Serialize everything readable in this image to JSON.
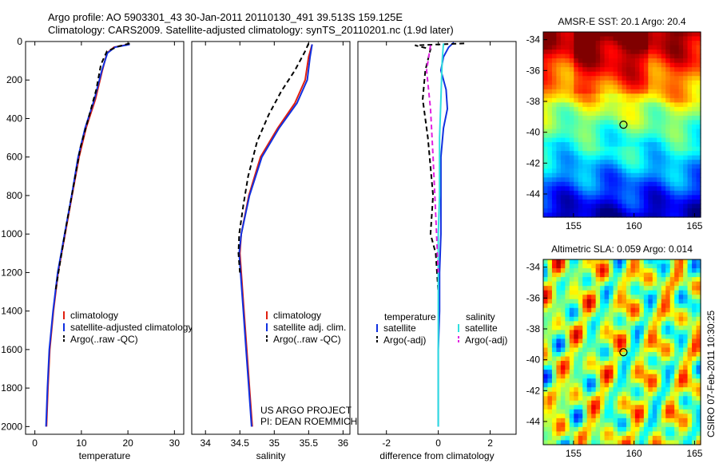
{
  "header": {
    "title_line1": "Argo profile: AO 5903301_43 30-Jan-2011 20110130_491 39.513S 159.125E",
    "title_line2": "Climatology: CARS2009. Satellite-adjusted climatology: synTS_20110201.nc (1.9d later)"
  },
  "footer": {
    "project_line1": "US ARGO PROJECT",
    "project_line2": "PI: DEAN ROEMMICH",
    "csiro_stamp": "CSIRO 07-Feb-2011 10:30:25"
  },
  "colors": {
    "climatology": "#e02010",
    "satellite": "#1030e0",
    "argo": "#000000",
    "sal_satellite": "#30e0e0",
    "sal_argo": "#e020e0"
  },
  "chart_data": [
    {
      "type": "line",
      "id": "temperature",
      "title": "",
      "xlabel": "temperature",
      "ylabel": "",
      "xlim": [
        -2,
        32
      ],
      "ylim": [
        2040,
        0
      ],
      "xticks": [
        0,
        10,
        20,
        30
      ],
      "yticks": [
        0,
        200,
        400,
        600,
        800,
        1000,
        1200,
        1400,
        1600,
        1800,
        2000
      ],
      "legend": [
        {
          "label": "climatology",
          "key": "climatology"
        },
        {
          "label": "satellite-adjusted climatology",
          "key": "satellite"
        },
        {
          "label": "Argo(..raw -QC)",
          "key": "argo"
        }
      ],
      "series": [
        {
          "name": "climatology",
          "color_key": "climatology",
          "dash": "",
          "points": [
            [
              20.2,
              15
            ],
            [
              17,
              30
            ],
            [
              15.5,
              60
            ],
            [
              14.5,
              150
            ],
            [
              13,
              300
            ],
            [
              11,
              450
            ],
            [
              9.5,
              600
            ],
            [
              8,
              800
            ],
            [
              6.5,
              1000
            ],
            [
              5,
              1200
            ],
            [
              4,
              1400
            ],
            [
              3.2,
              1600
            ],
            [
              2.8,
              1800
            ],
            [
              2.5,
              2000
            ]
          ]
        },
        {
          "name": "satellite",
          "color_key": "satellite",
          "dash": "",
          "points": [
            [
              20.4,
              15
            ],
            [
              17.2,
              30
            ],
            [
              15.6,
              60
            ],
            [
              14.4,
              150
            ],
            [
              12.8,
              300
            ],
            [
              10.8,
              450
            ],
            [
              9.3,
              600
            ],
            [
              7.9,
              800
            ],
            [
              6.4,
              1000
            ],
            [
              4.9,
              1200
            ],
            [
              3.9,
              1400
            ],
            [
              3.1,
              1600
            ],
            [
              2.7,
              1800
            ],
            [
              2.4,
              2000
            ]
          ]
        },
        {
          "name": "argo",
          "color_key": "argo",
          "dash": "6,4",
          "points": [
            [
              20.4,
              10
            ],
            [
              18,
              25
            ],
            [
              15.5,
              50
            ],
            [
              14.2,
              120
            ],
            [
              13.2,
              250
            ],
            [
              11.5,
              400
            ],
            [
              9.8,
              550
            ],
            [
              8.3,
              750
            ],
            [
              6.8,
              950
            ],
            [
              5.4,
              1150
            ],
            [
              4.4,
              1300
            ]
          ]
        }
      ]
    },
    {
      "type": "line",
      "id": "salinity",
      "title": "",
      "xlabel": "salinity",
      "ylabel": "",
      "xlim": [
        33.8,
        36.1
      ],
      "ylim": [
        2040,
        0
      ],
      "xticks": [
        34,
        34.5,
        35,
        35.5,
        36
      ],
      "yticks": [],
      "legend": [
        {
          "label": "climatology",
          "key": "climatology"
        },
        {
          "label": "satellite adj. clim.",
          "key": "satellite"
        },
        {
          "label": "Argo(..raw -QC)",
          "key": "argo"
        }
      ],
      "series": [
        {
          "name": "climatology",
          "color_key": "climatology",
          "dash": "",
          "points": [
            [
              35.55,
              15
            ],
            [
              35.5,
              80
            ],
            [
              35.45,
              200
            ],
            [
              35.3,
              320
            ],
            [
              35.05,
              450
            ],
            [
              34.8,
              600
            ],
            [
              34.63,
              800
            ],
            [
              34.52,
              1000
            ],
            [
              34.5,
              1100
            ],
            [
              34.52,
              1200
            ],
            [
              34.56,
              1400
            ],
            [
              34.6,
              1600
            ],
            [
              34.64,
              1800
            ],
            [
              34.68,
              2000
            ]
          ]
        },
        {
          "name": "satellite",
          "color_key": "satellite",
          "dash": "",
          "points": [
            [
              35.55,
              15
            ],
            [
              35.52,
              80
            ],
            [
              35.48,
              200
            ],
            [
              35.33,
              320
            ],
            [
              35.07,
              450
            ],
            [
              34.82,
              600
            ],
            [
              34.64,
              800
            ],
            [
              34.52,
              1000
            ],
            [
              34.49,
              1100
            ],
            [
              34.51,
              1200
            ],
            [
              34.55,
              1400
            ],
            [
              34.59,
              1600
            ],
            [
              34.63,
              1800
            ],
            [
              34.67,
              2000
            ]
          ]
        },
        {
          "name": "argo",
          "color_key": "argo",
          "dash": "6,4",
          "points": [
            [
              35.5,
              10
            ],
            [
              35.45,
              50
            ],
            [
              35.3,
              150
            ],
            [
              35.1,
              260
            ],
            [
              34.92,
              380
            ],
            [
              34.75,
              520
            ],
            [
              34.62,
              700
            ],
            [
              34.55,
              850
            ],
            [
              34.49,
              1000
            ],
            [
              34.48,
              1100
            ],
            [
              34.5,
              1200
            ]
          ]
        }
      ]
    },
    {
      "type": "line",
      "id": "difference",
      "title": "",
      "xlabel": "difference from climatology",
      "ylabel": "",
      "xlim": [
        -3.1,
        3.0
      ],
      "ylim": [
        2040,
        0
      ],
      "xticks": [
        -2,
        0,
        2
      ],
      "yticks": [],
      "legend_header_left": "temperature",
      "legend_header_right": "salinity",
      "legend_left": [
        {
          "label": "satellite",
          "key": "satellite"
        },
        {
          "label": "Argo(-adj)",
          "key": "argo"
        }
      ],
      "legend_right": [
        {
          "label": "satellite",
          "key": "sal_satellite"
        },
        {
          "label": "Argo(-adj)",
          "key": "sal_argo"
        }
      ],
      "series": [
        {
          "name": "temperature satellite",
          "color_key": "satellite",
          "dash": "",
          "points": [
            [
              0.6,
              5
            ],
            [
              0.4,
              30
            ],
            [
              0.2,
              80
            ],
            [
              0.1,
              150
            ],
            [
              0.3,
              250
            ],
            [
              0.35,
              350
            ],
            [
              0.2,
              450
            ],
            [
              0.1,
              600
            ],
            [
              0.1,
              800
            ],
            [
              0.1,
              1000
            ],
            [
              0.05,
              1200
            ],
            [
              0.05,
              1400
            ],
            [
              0,
              1600
            ],
            [
              0,
              1800
            ],
            [
              0,
              2000
            ]
          ]
        },
        {
          "name": "temperature argo",
          "color_key": "argo",
          "dash": "6,4",
          "points": [
            [
              1.0,
              10
            ],
            [
              -0.9,
              20
            ],
            [
              -0.3,
              40
            ],
            [
              -0.5,
              150
            ],
            [
              -0.6,
              300
            ],
            [
              -0.4,
              500
            ],
            [
              -0.2,
              800
            ],
            [
              -0.3,
              1000
            ],
            [
              -0.1,
              1100
            ],
            [
              0,
              1300
            ]
          ]
        },
        {
          "name": "salinity satellite",
          "color_key": "sal_satellite",
          "dash": "",
          "points": [
            [
              0.2,
              10
            ],
            [
              0.15,
              100
            ],
            [
              0.1,
              300
            ],
            [
              0.05,
              500
            ],
            [
              0.05,
              800
            ],
            [
              0,
              1000
            ],
            [
              0,
              1400
            ],
            [
              0,
              2000
            ]
          ]
        },
        {
          "name": "salinity argo",
          "color_key": "sal_argo",
          "dash": "6,4",
          "points": [
            [
              -0.3,
              20
            ],
            [
              -0.45,
              150
            ],
            [
              -0.3,
              350
            ],
            [
              -0.2,
              600
            ],
            [
              -0.1,
              900
            ],
            [
              0,
              1200
            ]
          ]
        }
      ]
    },
    {
      "type": "heatmap",
      "id": "sst-map",
      "title": "AMSR-E SST: 20.1 Argo: 20.4",
      "xlim": [
        152.5,
        165.5
      ],
      "ylim": [
        -45.5,
        -33.5
      ],
      "xticks": [
        155,
        160,
        165
      ],
      "yticks": [
        -34,
        -36,
        -38,
        -40,
        -42,
        -44
      ],
      "marker": {
        "lon": 159.125,
        "lat": -39.513
      }
    },
    {
      "type": "heatmap",
      "id": "sla-map",
      "title": "Altimetric SLA: 0.059 Argo: 0.014",
      "xlim": [
        152.5,
        165.5
      ],
      "ylim": [
        -45.5,
        -33.5
      ],
      "xticks": [
        155,
        160,
        165
      ],
      "yticks": [
        -34,
        -36,
        -38,
        -40,
        -42,
        -44
      ],
      "marker": {
        "lon": 159.125,
        "lat": -39.513
      }
    }
  ]
}
